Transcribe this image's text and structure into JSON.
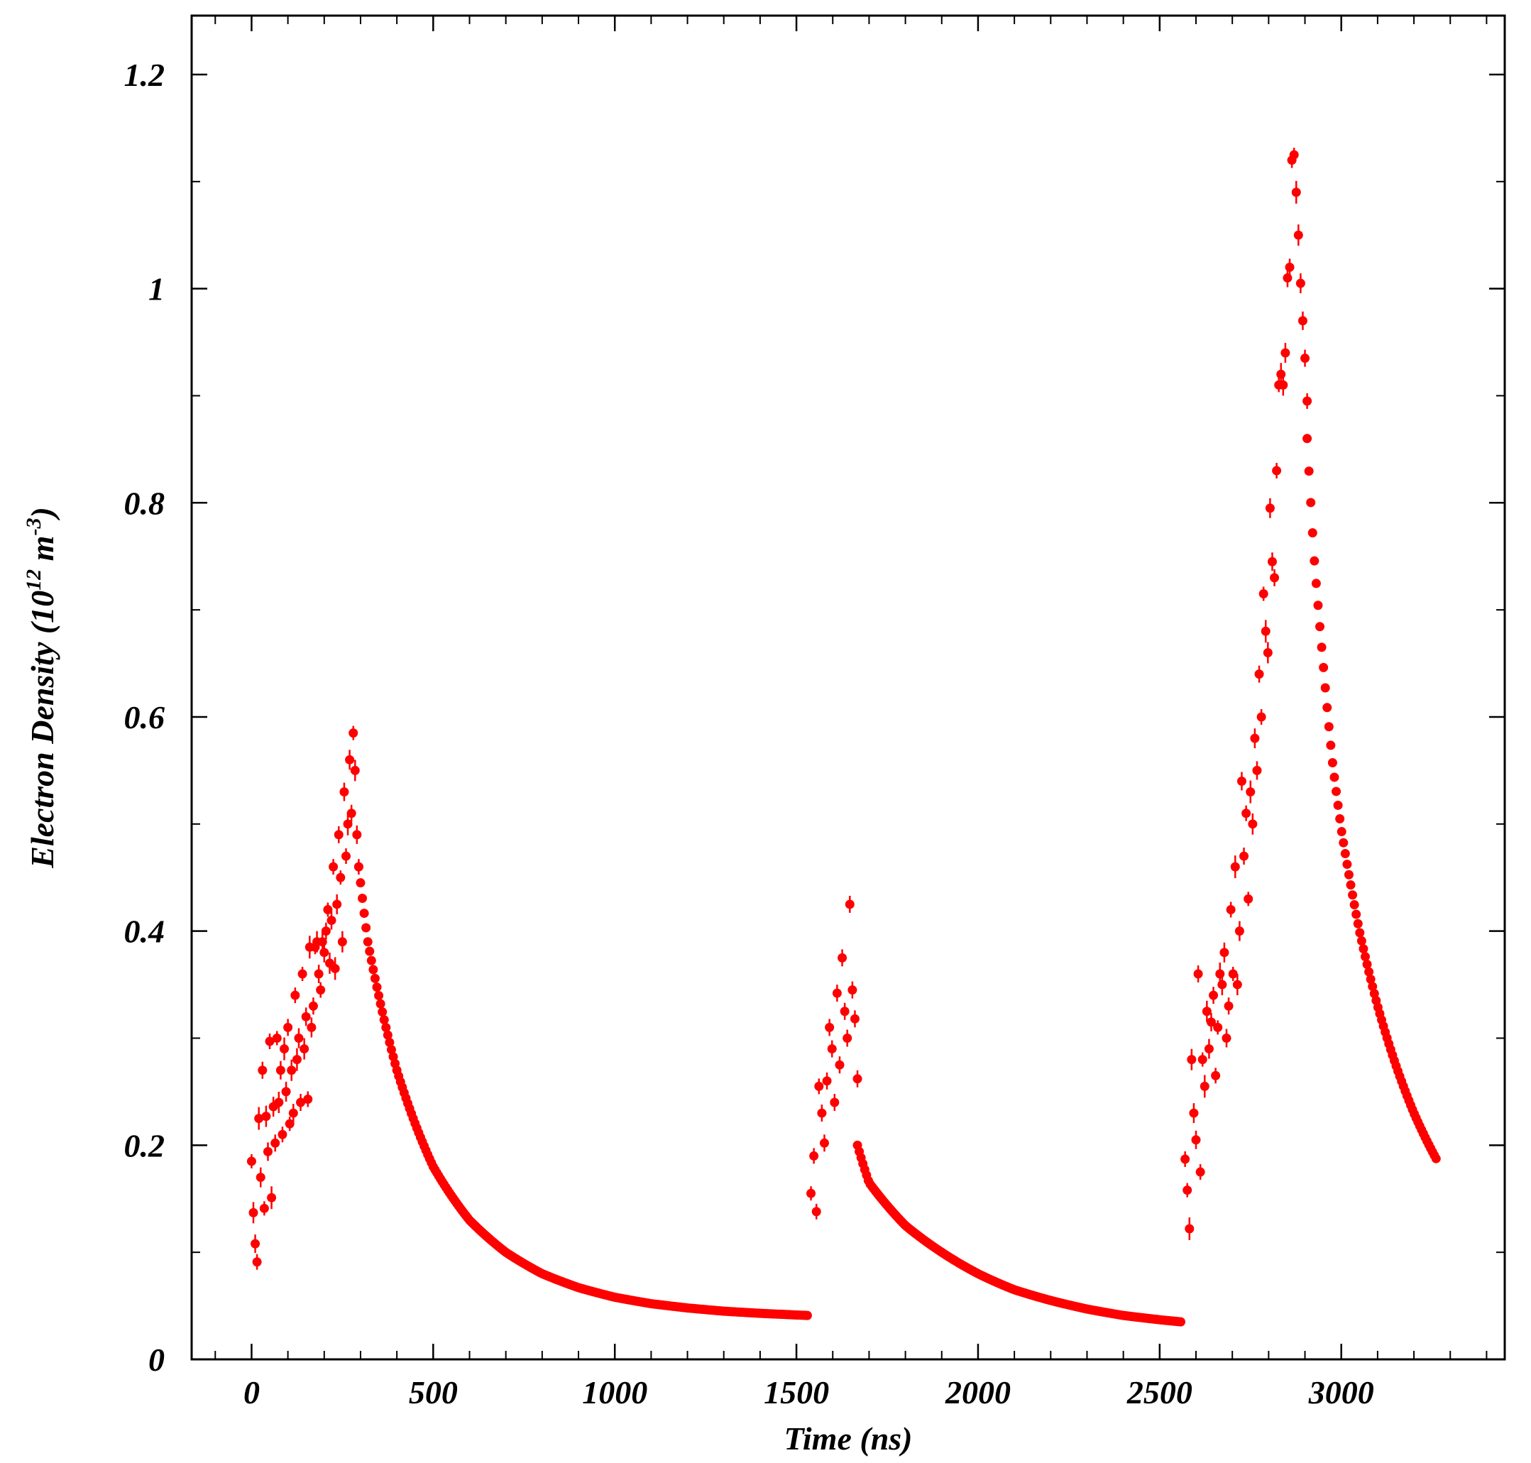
{
  "chart_data": {
    "type": "scatter",
    "title": "",
    "xlabel": "Time (ns)",
    "ylabel": {
      "prefix": "Electron Density (10",
      "exp1": "12",
      "middle": " m",
      "exp2": "-3",
      "suffix": ")"
    },
    "xlim": [
      -165,
      3450
    ],
    "ylim": [
      0,
      1.255
    ],
    "x_ticks": [
      0,
      500,
      1000,
      1500,
      2000,
      2500,
      3000
    ],
    "x_tick_labels": [
      "0",
      "500",
      "1000",
      "1500",
      "2000",
      "2500",
      "3000"
    ],
    "y_ticks": [
      0,
      0.2,
      0.4,
      0.6,
      0.8,
      1.0,
      1.2
    ],
    "y_tick_labels": [
      "0",
      "0.2",
      "0.4",
      "0.6",
      "0.8",
      "1",
      "1.2"
    ],
    "grid": false,
    "marker_color": "#ff0000",
    "error_bars": true,
    "series": [
      {
        "values_scattered": [
          [
            0,
            0.185
          ],
          [
            5,
            0.137
          ],
          [
            10,
            0.108
          ],
          [
            15,
            0.091
          ],
          [
            20,
            0.225
          ],
          [
            25,
            0.17
          ],
          [
            30,
            0.27
          ],
          [
            35,
            0.141
          ],
          [
            40,
            0.227
          ],
          [
            45,
            0.194
          ],
          [
            50,
            0.297
          ],
          [
            55,
            0.151
          ],
          [
            60,
            0.236
          ],
          [
            65,
            0.202
          ],
          [
            70,
            0.3
          ],
          [
            75,
            0.24
          ],
          [
            80,
            0.27
          ],
          [
            85,
            0.21
          ],
          [
            90,
            0.29
          ],
          [
            95,
            0.25
          ],
          [
            100,
            0.31
          ],
          [
            105,
            0.22
          ],
          [
            110,
            0.27
          ],
          [
            115,
            0.23
          ],
          [
            120,
            0.34
          ],
          [
            125,
            0.28
          ],
          [
            130,
            0.3
          ],
          [
            135,
            0.24
          ],
          [
            140,
            0.36
          ],
          [
            145,
            0.29
          ],
          [
            150,
            0.32
          ],
          [
            155,
            0.243
          ],
          [
            160,
            0.385
          ],
          [
            165,
            0.31
          ],
          [
            170,
            0.33
          ],
          [
            175,
            0.385
          ],
          [
            180,
            0.39
          ],
          [
            185,
            0.36
          ],
          [
            190,
            0.345
          ],
          [
            195,
            0.39
          ],
          [
            200,
            0.38
          ],
          [
            205,
            0.4
          ],
          [
            210,
            0.42
          ],
          [
            215,
            0.37
          ],
          [
            220,
            0.41
          ],
          [
            225,
            0.46
          ],
          [
            230,
            0.365
          ],
          [
            235,
            0.425
          ],
          [
            240,
            0.49
          ],
          [
            245,
            0.45
          ],
          [
            250,
            0.39
          ],
          [
            255,
            0.53
          ],
          [
            260,
            0.47
          ],
          [
            265,
            0.5
          ],
          [
            270,
            0.56
          ],
          [
            275,
            0.51
          ],
          [
            280,
            0.585
          ],
          [
            285,
            0.55
          ],
          [
            290,
            0.49
          ],
          [
            295,
            0.46
          ],
          [
            1540,
            0.155
          ],
          [
            1548,
            0.19
          ],
          [
            1555,
            0.138
          ],
          [
            1562,
            0.255
          ],
          [
            1570,
            0.23
          ],
          [
            1577,
            0.202
          ],
          [
            1584,
            0.26
          ],
          [
            1591,
            0.31
          ],
          [
            1598,
            0.29
          ],
          [
            1605,
            0.24
          ],
          [
            1612,
            0.342
          ],
          [
            1619,
            0.275
          ],
          [
            1626,
            0.375
          ],
          [
            1633,
            0.325
          ],
          [
            1640,
            0.3
          ],
          [
            1647,
            0.425
          ],
          [
            1654,
            0.345
          ],
          [
            1661,
            0.318
          ],
          [
            1668,
            0.262
          ],
          [
            2570,
            0.187
          ],
          [
            2576,
            0.158
          ],
          [
            2582,
            0.122
          ],
          [
            2588,
            0.28
          ],
          [
            2594,
            0.23
          ],
          [
            2600,
            0.205
          ],
          [
            2606,
            0.36
          ],
          [
            2612,
            0.175
          ],
          [
            2618,
            0.28
          ],
          [
            2624,
            0.255
          ],
          [
            2630,
            0.325
          ],
          [
            2636,
            0.29
          ],
          [
            2642,
            0.315
          ],
          [
            2648,
            0.34
          ],
          [
            2654,
            0.265
          ],
          [
            2660,
            0.31
          ],
          [
            2666,
            0.36
          ],
          [
            2672,
            0.35
          ],
          [
            2678,
            0.38
          ],
          [
            2684,
            0.3
          ],
          [
            2690,
            0.33
          ],
          [
            2696,
            0.42
          ],
          [
            2702,
            0.36
          ],
          [
            2708,
            0.46
          ],
          [
            2714,
            0.35
          ],
          [
            2720,
            0.4
          ],
          [
            2726,
            0.54
          ],
          [
            2732,
            0.47
          ],
          [
            2738,
            0.51
          ],
          [
            2744,
            0.43
          ],
          [
            2750,
            0.53
          ],
          [
            2756,
            0.5
          ],
          [
            2762,
            0.58
          ],
          [
            2768,
            0.55
          ],
          [
            2774,
            0.64
          ],
          [
            2780,
            0.6
          ],
          [
            2786,
            0.715
          ],
          [
            2792,
            0.68
          ],
          [
            2798,
            0.66
          ],
          [
            2804,
            0.795
          ],
          [
            2810,
            0.745
          ],
          [
            2816,
            0.73
          ],
          [
            2822,
            0.83
          ],
          [
            2828,
            0.91
          ],
          [
            2834,
            0.92
          ],
          [
            2840,
            0.91
          ],
          [
            2846,
            0.94
          ],
          [
            2852,
            1.01
          ],
          [
            2858,
            1.02
          ],
          [
            2864,
            1.12
          ],
          [
            2870,
            1.125
          ],
          [
            2876,
            1.09
          ],
          [
            2882,
            1.05
          ],
          [
            2888,
            1.005
          ],
          [
            2894,
            0.97
          ],
          [
            2900,
            0.935
          ],
          [
            2906,
            0.895
          ]
        ],
        "decay_curves": [
          {
            "x_start": 295,
            "x_end": 1530,
            "step": 5,
            "y_at": [
              [
                295,
                0.46
              ],
              [
                320,
                0.39
              ],
              [
                400,
                0.27
              ],
              [
                500,
                0.18
              ],
              [
                600,
                0.13
              ],
              [
                700,
                0.1
              ],
              [
                800,
                0.08
              ],
              [
                900,
                0.067
              ],
              [
                1000,
                0.058
              ],
              [
                1100,
                0.052
              ],
              [
                1200,
                0.048
              ],
              [
                1300,
                0.045
              ],
              [
                1400,
                0.043
              ],
              [
                1530,
                0.041
              ]
            ]
          },
          {
            "x_start": 1668,
            "x_end": 2560,
            "step": 5,
            "y_at": [
              [
                1668,
                0.2
              ],
              [
                1700,
                0.165
              ],
              [
                1800,
                0.125
              ],
              [
                1900,
                0.1
              ],
              [
                2000,
                0.08
              ],
              [
                2100,
                0.065
              ],
              [
                2200,
                0.055
              ],
              [
                2300,
                0.047
              ],
              [
                2400,
                0.041
              ],
              [
                2500,
                0.037
              ],
              [
                2560,
                0.035
              ]
            ]
          },
          {
            "x_start": 2906,
            "x_end": 3265,
            "step": 5,
            "y_at": [
              [
                2906,
                0.86
              ],
              [
                2925,
                0.75
              ],
              [
                2950,
                0.65
              ],
              [
                2975,
                0.56
              ],
              [
                3000,
                0.495
              ],
              [
                3050,
                0.4
              ],
              [
                3100,
                0.33
              ],
              [
                3150,
                0.275
              ],
              [
                3200,
                0.23
              ],
              [
                3265,
                0.185
              ]
            ]
          }
        ]
      }
    ]
  }
}
